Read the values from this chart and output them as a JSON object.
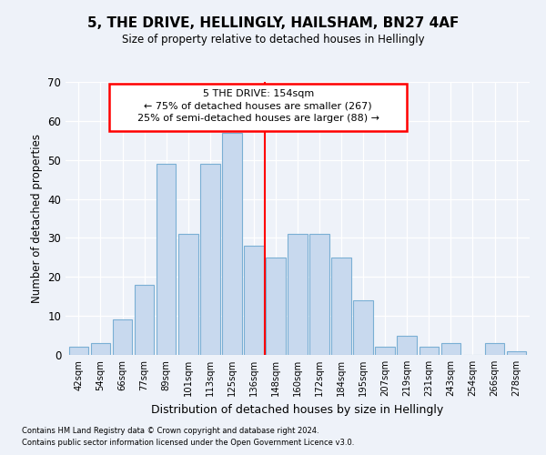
{
  "title": "5, THE DRIVE, HELLINGLY, HAILSHAM, BN27 4AF",
  "subtitle": "Size of property relative to detached houses in Hellingly",
  "xlabel": "Distribution of detached houses by size in Hellingly",
  "ylabel": "Number of detached properties",
  "bar_color": "#c8d9ee",
  "bar_edge_color": "#7aafd4",
  "background_color": "#eef2f9",
  "categories": [
    "42sqm",
    "54sqm",
    "66sqm",
    "77sqm",
    "89sqm",
    "101sqm",
    "113sqm",
    "125sqm",
    "136sqm",
    "148sqm",
    "160sqm",
    "172sqm",
    "184sqm",
    "195sqm",
    "207sqm",
    "219sqm",
    "231sqm",
    "243sqm",
    "254sqm",
    "266sqm",
    "278sqm"
  ],
  "values": [
    2,
    3,
    9,
    18,
    49,
    31,
    49,
    57,
    28,
    25,
    31,
    31,
    25,
    14,
    2,
    5,
    2,
    3,
    0,
    3,
    1
  ],
  "ylim": [
    0,
    70
  ],
  "yticks": [
    0,
    10,
    20,
    30,
    40,
    50,
    60,
    70
  ],
  "property_line_x": 8.5,
  "annotation_title": "5 THE DRIVE: 154sqm",
  "annotation_line1": "← 75% of detached houses are smaller (267)",
  "annotation_line2": "25% of semi-detached houses are larger (88) →",
  "footer1": "Contains HM Land Registry data © Crown copyright and database right 2024.",
  "footer2": "Contains public sector information licensed under the Open Government Licence v3.0."
}
